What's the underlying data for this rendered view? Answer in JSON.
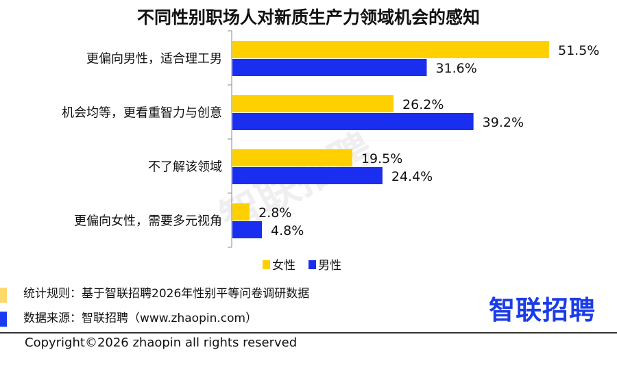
{
  "chart_data": {
    "type": "bar",
    "orientation": "horizontal",
    "title": "不同性别职场人对新质生产力领域机会的感知",
    "categories": [
      "更偏向男性，适合理工男",
      "机会均等，更看重智力与创意",
      "不了解该领域",
      "更偏向女性，需要多元视角"
    ],
    "series": [
      {
        "name": "女性",
        "color": "#FFD000",
        "values": [
          51.5,
          26.2,
          19.5,
          2.8
        ],
        "labels": [
          "51.5%",
          "26.2%",
          "19.5%",
          "2.8%"
        ]
      },
      {
        "name": "男性",
        "color": "#1A2EF0",
        "values": [
          31.6,
          39.2,
          24.4,
          4.8
        ],
        "labels": [
          "31.6%",
          "39.2%",
          "24.4%",
          "4.8%"
        ]
      }
    ],
    "xlim": [
      0,
      60
    ],
    "legend": "bottom",
    "grid": false
  },
  "footer": {
    "rule": "统计规则：基于智联招聘2026年性别平等问卷调研数据",
    "source": "数据来源：智联招聘（www.zhaopin.com）",
    "copyright": "Copyright©2026 zhaopin all rights reserved",
    "logo": "智联招聘",
    "watermark": "智联招聘"
  }
}
